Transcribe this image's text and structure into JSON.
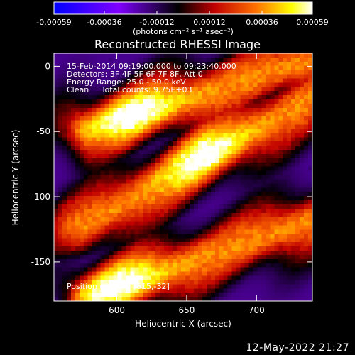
{
  "colorbar": {
    "ticks": [
      "-0.00059",
      "-0.00036",
      "-0.00012",
      "0.00012",
      "0.00036",
      "0.00059"
    ],
    "tick_values": [
      -0.00059,
      -0.00036,
      -0.00012,
      0.00012,
      0.00036,
      0.00059
    ],
    "range": [
      -0.00059,
      0.00059
    ],
    "units_label": "(photons cm⁻² s⁻¹ asec⁻²)"
  },
  "chart_data": {
    "type": "heatmap",
    "title": "Reconstructed RHESSI Image",
    "xlabel": "Heliocentric X (arcsec)",
    "ylabel": "Heliocentric Y (arcsec)",
    "xlim": [
      555,
      740
    ],
    "ylim": [
      -180,
      10
    ],
    "xticks": [
      600,
      650,
      700
    ],
    "yticks": [
      0,
      -50,
      -100,
      -150
    ],
    "colormap": [
      "#0000ff",
      "#7f00ff",
      "#000000",
      "#b40000",
      "#ff7000",
      "#ffff00",
      "#ffffff"
    ],
    "annotations": {
      "time": "15-Feb-2014 09:19:00.000 to 09:23:40.000",
      "detectors": "Detectors: 3F 4F 5F 6F 7F 8F, Att 0",
      "energy": "Energy Range: 25.0 - 50.0 keV",
      "clean": "Clean     Total counts: 9.75E+03",
      "position": "Position of fov = [615,-32]"
    },
    "bright_bands": [
      {
        "start": [
          578,
          -50
        ],
        "end": [
          740,
          5
        ],
        "peak": [
          612,
          -35
        ]
      },
      {
        "start": [
          575,
          -125
        ],
        "end": [
          740,
          -25
        ],
        "peak": [
          660,
          -65
        ]
      },
      {
        "start": [
          580,
          -180
        ],
        "end": [
          740,
          -120
        ],
        "peak": [
          600,
          -165
        ]
      }
    ]
  },
  "footer": {
    "timestamp": "12-May-2022 21:27"
  }
}
